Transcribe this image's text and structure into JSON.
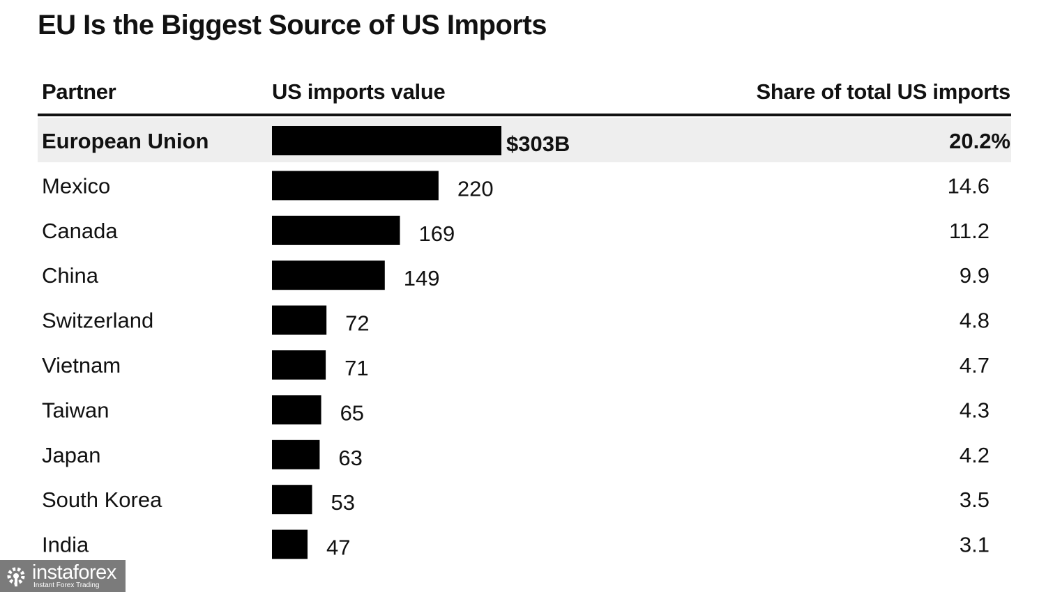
{
  "chart_data": {
    "type": "bar",
    "orientation": "horizontal",
    "title": "EU Is the Biggest Source of US Imports",
    "columns": {
      "partner": "Partner",
      "value": "US imports value",
      "share": "Share of total US imports"
    },
    "categories": [
      "European Union",
      "Mexico",
      "Canada",
      "China",
      "Switzerland",
      "Vietnam",
      "Taiwan",
      "Japan",
      "South Korea",
      "India"
    ],
    "values": [
      303,
      220,
      169,
      149,
      72,
      71,
      65,
      63,
      53,
      47
    ],
    "value_labels": [
      "$303B",
      "220",
      "169",
      "149",
      "72",
      "71",
      "65",
      "63",
      "53",
      "47"
    ],
    "shares": [
      20.2,
      14.6,
      11.2,
      9.9,
      4.8,
      4.7,
      4.3,
      4.2,
      3.5,
      3.1
    ],
    "share_labels": [
      "20.2%",
      "14.6",
      "11.2",
      "9.9",
      "4.8",
      "4.7",
      "4.3",
      "4.2",
      "3.5",
      "3.1"
    ],
    "unit": "billion USD",
    "highlighted_category": "European Union",
    "bar_color": "#000000",
    "highlight_color": "#eeeeee",
    "grid": false,
    "legend": "none"
  },
  "watermark": {
    "brand": "instaforex",
    "tagline": "Instant Forex Trading"
  }
}
